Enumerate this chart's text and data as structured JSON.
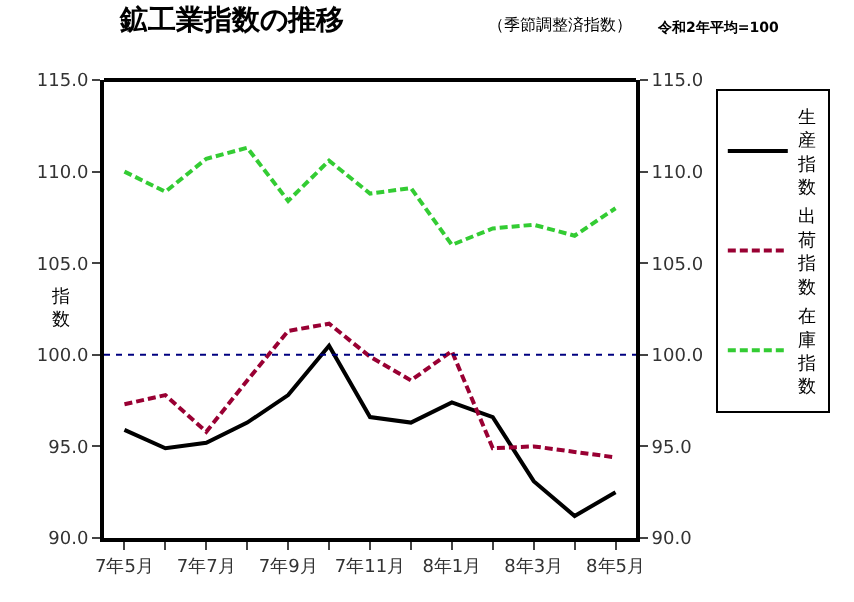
{
  "chart_data": {
    "type": "line",
    "title": "鉱工業指数の推移",
    "subtitle": "（季節調整済指数）",
    "annotations": [
      "令和2年平均=100"
    ],
    "ylabel": "指数",
    "categories": [
      "7年5月",
      null,
      "7年7月",
      null,
      "7年9月",
      null,
      "7年11月",
      null,
      "8年1月",
      null,
      "8年3月",
      null,
      "8年5月"
    ],
    "series": [
      {
        "name": "生産指数",
        "color": "#000000",
        "line_style": "solid",
        "values": [
          95.9,
          94.9,
          95.2,
          96.3,
          97.8,
          100.5,
          96.6,
          96.3,
          97.4,
          96.6,
          93.1,
          91.2,
          92.5
        ]
      },
      {
        "name": "出荷指数",
        "color": "#990033",
        "line_style": "dashed",
        "values": [
          97.3,
          97.8,
          95.8,
          98.6,
          101.3,
          101.7,
          99.9,
          98.6,
          100.2,
          94.9,
          95.0,
          94.7,
          94.4
        ]
      },
      {
        "name": "在庫指数",
        "color": "#33cc33",
        "line_style": "dashed",
        "values": [
          110.0,
          108.9,
          110.7,
          111.3,
          108.4,
          110.6,
          108.8,
          109.1,
          106.0,
          106.9,
          107.1,
          106.5,
          108.0
        ]
      }
    ],
    "ylim": [
      90,
      115
    ],
    "yticks": [
      {
        "value": 90,
        "label": "90.0"
      },
      {
        "value": 95,
        "label": "95.0"
      },
      {
        "value": 100,
        "label": "100.0"
      },
      {
        "value": 105,
        "label": "105.0"
      },
      {
        "value": 110,
        "label": "110.0"
      },
      {
        "value": 115,
        "label": "115.0"
      }
    ],
    "y2lim": [
      90,
      115
    ],
    "y2ticks": [
      {
        "value": 90,
        "label": "90.0"
      },
      {
        "value": 95,
        "label": "95.0"
      },
      {
        "value": 100,
        "label": "100.0"
      },
      {
        "value": 105,
        "label": "105.0"
      },
      {
        "value": 110,
        "label": "110.0"
      },
      {
        "value": 115,
        "label": "115.0"
      }
    ],
    "ref_lines": [
      {
        "axis": "y",
        "value": 100,
        "color": "#000080",
        "line_style": "dotted"
      }
    ],
    "marker": "none",
    "legend": "right"
  }
}
